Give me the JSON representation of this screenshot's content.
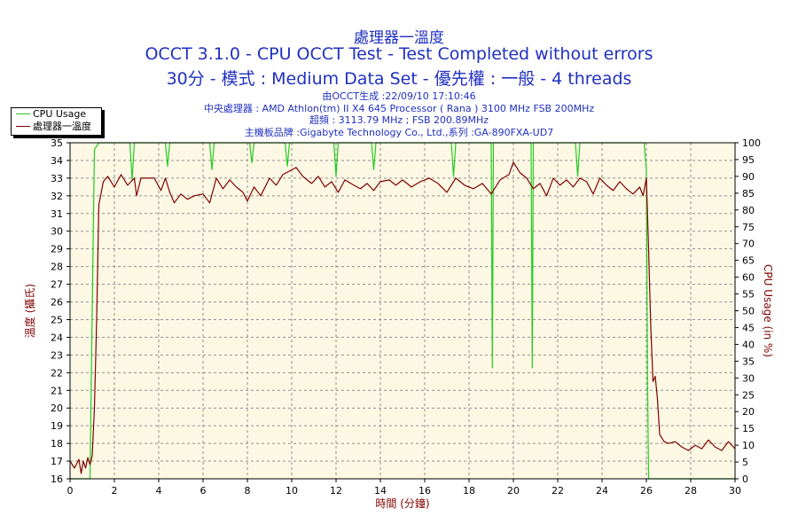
{
  "titles": {
    "line1": "處理器一溫度",
    "line2": "OCCT 3.1.0 - CPU OCCT Test - Test Completed without errors",
    "line3": "30分 - 模式 : Medium Data Set - 優先權 : 一般 - 4 threads"
  },
  "info": {
    "generated": "由OCCT生成 :22/09/10 17:10:46",
    "processor": "中央處理器 : AMD Athlon(tm) II X4 645 Processor ( Rana ) 3100 MHz FSB 200MHz",
    "overclock": "超頻 : 3113.79 MHz ; FSB 200.89MHz",
    "motherboard": "主機板品牌 :Gigabyte Technology Co., Ltd.,系列 :GA-890FXA-UD7"
  },
  "legend": {
    "cpu_usage": "CPU Usage",
    "temperature": "處理器一溫度"
  },
  "colors": {
    "background": "#fdf8e4",
    "cpu_usage_line": "#22cc22",
    "temperature_line": "#800000",
    "title_text": "#2030c0",
    "temp_axis_text": "#800000"
  },
  "chart_data": {
    "type": "line",
    "xlabel": "時間 (分鐘)",
    "ylabel": "溫度 (攝氏)",
    "y2label": "CPU Usage (in %)",
    "xlim": [
      0,
      30
    ],
    "ylim": [
      16,
      35
    ],
    "y2lim": [
      0,
      100
    ],
    "xticks": [
      0,
      2,
      4,
      6,
      8,
      10,
      12,
      14,
      16,
      18,
      20,
      22,
      24,
      26,
      28,
      30
    ],
    "yticks": [
      16,
      17,
      18,
      19,
      20,
      21,
      22,
      23,
      24,
      25,
      26,
      27,
      28,
      29,
      30,
      31,
      32,
      33,
      34,
      35
    ],
    "y2ticks": [
      0,
      5,
      10,
      15,
      20,
      25,
      30,
      35,
      40,
      45,
      50,
      55,
      60,
      65,
      70,
      75,
      80,
      85,
      90,
      95,
      100
    ],
    "grid": true,
    "series": [
      {
        "name": "CPU Usage",
        "axis": "right",
        "x": [
          0,
          0.9,
          1.0,
          1.1,
          1.3,
          2.7,
          2.8,
          2.9,
          4.3,
          4.4,
          4.5,
          6.3,
          6.4,
          6.5,
          8.1,
          8.2,
          8.3,
          9.7,
          9.8,
          9.9,
          11.9,
          12.0,
          12.1,
          13.6,
          13.7,
          13.8,
          17.2,
          17.3,
          17.4,
          19.0,
          19.05,
          19.1,
          20.8,
          20.85,
          20.9,
          22.8,
          22.9,
          23.0,
          25.9,
          26.0,
          26.05,
          26.1,
          27.0,
          30.0
        ],
        "values": [
          0,
          0,
          50,
          98,
          100,
          100,
          89,
          100,
          100,
          93,
          100,
          100,
          92,
          100,
          100,
          94,
          100,
          100,
          93,
          100,
          100,
          90,
          100,
          100,
          92,
          100,
          100,
          90,
          100,
          100,
          33,
          100,
          100,
          33,
          100,
          100,
          90,
          100,
          100,
          92,
          30,
          0,
          0,
          0
        ]
      },
      {
        "name": "處理器一溫度",
        "axis": "left",
        "x": [
          0,
          0.2,
          0.4,
          0.5,
          0.6,
          0.7,
          0.8,
          0.9,
          1.0,
          1.1,
          1.2,
          1.3,
          1.5,
          1.7,
          2.0,
          2.3,
          2.6,
          2.9,
          3.0,
          3.2,
          3.5,
          3.8,
          4.1,
          4.3,
          4.5,
          4.7,
          5.0,
          5.3,
          5.6,
          6.0,
          6.3,
          6.6,
          6.9,
          7.2,
          7.5,
          7.8,
          8.0,
          8.3,
          8.6,
          9.0,
          9.3,
          9.6,
          9.9,
          10.2,
          10.5,
          10.9,
          11.2,
          11.5,
          11.8,
          12.1,
          12.4,
          12.8,
          13.1,
          13.4,
          13.7,
          14.0,
          14.4,
          14.7,
          15.0,
          15.4,
          15.8,
          16.2,
          16.6,
          17.0,
          17.4,
          17.8,
          18.2,
          18.6,
          19.0,
          19.4,
          19.8,
          20.0,
          20.3,
          20.6,
          20.9,
          21.2,
          21.5,
          21.8,
          22.1,
          22.4,
          22.7,
          23.0,
          23.3,
          23.6,
          23.9,
          24.2,
          24.5,
          24.8,
          25.1,
          25.4,
          25.7,
          25.85,
          26.0,
          26.1,
          26.2,
          26.3,
          26.4,
          26.5,
          26.6,
          26.8,
          27.0,
          27.3,
          27.6,
          27.9,
          28.2,
          28.5,
          28.8,
          29.1,
          29.4,
          29.7,
          30.0
        ],
        "values": [
          17,
          16.6,
          17.1,
          16.3,
          17.0,
          16.6,
          17.2,
          16.8,
          17.3,
          20.0,
          25.0,
          31.5,
          32.8,
          33.1,
          32.5,
          33.2,
          32.6,
          33.0,
          32.0,
          33.0,
          33.0,
          33.0,
          32.3,
          33.0,
          32.2,
          31.6,
          32.1,
          31.8,
          32.0,
          32.1,
          31.6,
          33.0,
          32.4,
          32.9,
          32.5,
          32.2,
          31.7,
          32.5,
          32.0,
          33.0,
          32.6,
          33.2,
          33.4,
          33.6,
          33.1,
          32.7,
          33.1,
          32.5,
          32.8,
          32.2,
          32.9,
          32.6,
          32.4,
          32.7,
          32.3,
          32.8,
          32.9,
          32.6,
          32.9,
          32.5,
          32.8,
          33.0,
          32.7,
          32.2,
          33.0,
          32.6,
          32.4,
          32.7,
          32.1,
          32.9,
          33.2,
          33.9,
          33.3,
          33.0,
          32.4,
          32.7,
          32.0,
          33.0,
          32.6,
          32.9,
          32.5,
          33.0,
          32.8,
          32.1,
          33.0,
          32.6,
          32.3,
          32.8,
          32.4,
          32.1,
          32.5,
          32.0,
          33.0,
          29.0,
          24.5,
          21.5,
          21.8,
          20.5,
          18.5,
          18.1,
          18.0,
          18.1,
          17.8,
          17.6,
          17.9,
          17.7,
          18.2,
          17.8,
          17.6,
          18.1,
          17.7
        ]
      }
    ]
  }
}
